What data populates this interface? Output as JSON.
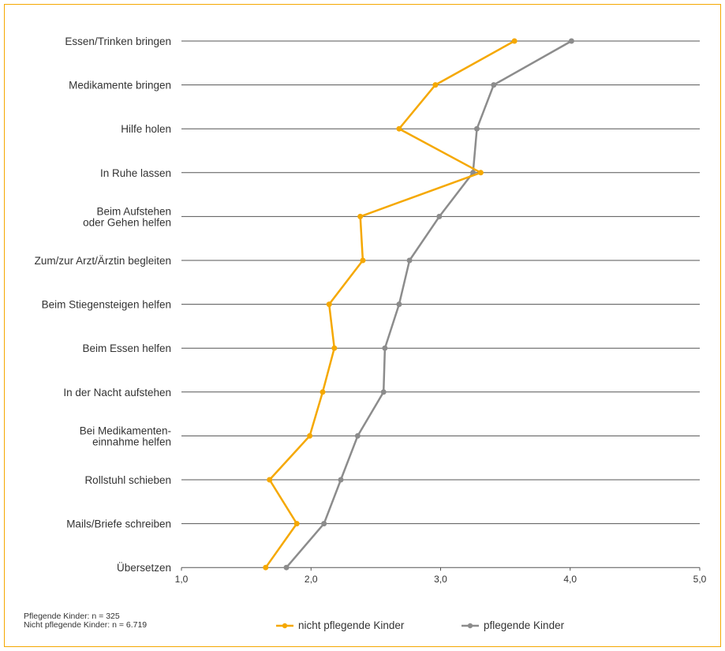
{
  "chart_data": {
    "type": "line",
    "orientation": "horizontal",
    "categories": [
      [
        "Essen/Trinken bringen"
      ],
      [
        "Medikamente bringen"
      ],
      [
        "Hilfe holen"
      ],
      [
        "In Ruhe lassen"
      ],
      [
        "Beim Aufstehen",
        "oder Gehen helfen"
      ],
      [
        "Zum/zur Arzt/Ärztin begleiten"
      ],
      [
        "Beim Stiegensteigen helfen"
      ],
      [
        "Beim Essen helfen"
      ],
      [
        "In der Nacht aufstehen"
      ],
      [
        "Bei Medikamenten-",
        "einnahme helfen"
      ],
      [
        "Rollstuhl schieben"
      ],
      [
        "Mails/Briefe schreiben"
      ],
      [
        "Übersetzen"
      ]
    ],
    "x_ticks": [
      "1,0",
      "2,0",
      "3,0",
      "4,0",
      "5,0"
    ],
    "xlim": [
      1,
      5
    ],
    "series": [
      {
        "name": "nicht pflegende Kinder",
        "color": "#f5a800",
        "values": [
          3.57,
          2.96,
          2.68,
          3.31,
          2.38,
          2.4,
          2.14,
          2.18,
          2.09,
          1.99,
          1.68,
          1.89,
          1.65
        ]
      },
      {
        "name": "pflegende Kinder",
        "color": "#8c8c8c",
        "values": [
          4.01,
          3.41,
          3.28,
          3.25,
          2.99,
          2.76,
          2.68,
          2.57,
          2.56,
          2.36,
          2.23,
          2.1,
          1.81
        ]
      }
    ],
    "gridlines": "horizontal",
    "legend_position": "bottom"
  },
  "notes": {
    "line1": "Pflegende Kinder:  n = 325",
    "line2": "Nicht pflegende Kinder:  n = 6.719"
  },
  "legend": {
    "item1": "nicht pflegende Kinder",
    "item2": "pflegende Kinder"
  }
}
